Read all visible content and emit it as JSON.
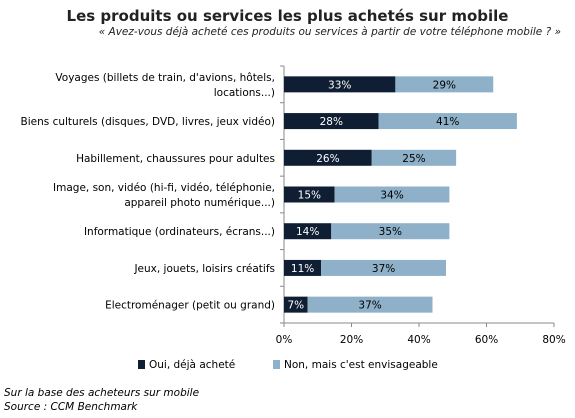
{
  "chart_data": {
    "type": "bar",
    "orientation": "horizontal",
    "stacked": true,
    "title": "Les produits ou services les plus achetés sur mobile",
    "subtitle": "« Avez-vous déjà acheté ces produits ou services à partir de votre téléphone mobile ? »",
    "categories": [
      [
        "Voyages (billets de train, d'avions, hôtels,",
        "locations...)"
      ],
      [
        "Biens culturels (disques, DVD, livres, jeux vidéo)"
      ],
      [
        "Habillement, chaussures pour adultes"
      ],
      [
        "Image, son, vidéo (hi-fi, vidéo, téléphonie,",
        "appareil photo numérique...)"
      ],
      [
        "Informatique (ordinateurs, écrans...)"
      ],
      [
        "Jeux, jouets, loisirs créatifs"
      ],
      [
        "Electroménager (petit ou grand)"
      ]
    ],
    "series": [
      {
        "name": "Oui, déjà acheté",
        "color": "#0f1e33",
        "values": [
          33,
          28,
          26,
          15,
          14,
          11,
          7
        ],
        "labels": [
          "33%",
          "28%",
          "26%",
          "15%",
          "14%",
          "11%",
          "7%"
        ]
      },
      {
        "name": "Non, mais c'est envisageable",
        "color": "#8eb0c8",
        "values": [
          29,
          41,
          25,
          34,
          35,
          37,
          37
        ],
        "labels": [
          "29%",
          "41%",
          "25%",
          "34%",
          "35%",
          "37%",
          "37%"
        ]
      }
    ],
    "xlim": [
      0,
      80
    ],
    "xticks": [
      "0%",
      "20%",
      "40%",
      "60%",
      "80%"
    ],
    "legend_position": "bottom",
    "grid": false
  },
  "notes": {
    "base": "Sur la base des acheteurs sur mobile",
    "source": "Source : CCM Benchmark"
  }
}
